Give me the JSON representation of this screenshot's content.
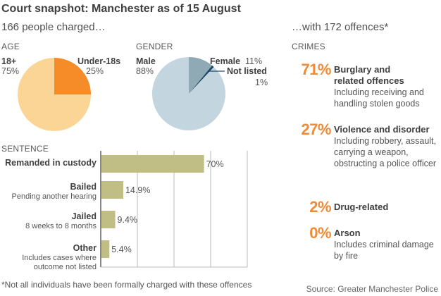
{
  "title": "Court snapshot: Manchester as of 15 August",
  "left_subtitle": "166 people charged…",
  "right_subtitle": "…with 172 offences*",
  "colors": {
    "accent_orange": "#F08A35",
    "age_adult": "#FBD596",
    "age_under18": "#F68C28",
    "gender_male": "#C3D5DE",
    "gender_female": "#8FAAB5",
    "gender_not_listed": "#1E4A68",
    "bar": "#C0BE84",
    "grid": "#bbbbbb"
  },
  "chart_data": [
    {
      "type": "pie",
      "title": "AGE",
      "slices": [
        {
          "label": "Under-18s",
          "value": 25,
          "value_label": "25%"
        },
        {
          "label": "18+",
          "value": 75,
          "value_label": "75%"
        }
      ]
    },
    {
      "type": "pie",
      "title": "GENDER",
      "slices": [
        {
          "label": "Female",
          "value": 11,
          "value_label": "11%"
        },
        {
          "label": "Not listed",
          "value": 1,
          "value_label": "1%"
        },
        {
          "label": "Male",
          "value": 88,
          "value_label": "88%"
        }
      ]
    },
    {
      "type": "bar",
      "orientation": "horizontal",
      "title": "SENTENCE",
      "xlim": [
        0,
        100
      ],
      "grid": true,
      "grid_values": [
        25,
        50,
        75
      ],
      "categories": [
        {
          "label": "Remanded in custody",
          "sublabel": "",
          "value": 70,
          "value_label": "70%"
        },
        {
          "label": "Bailed",
          "sublabel": "Pending another hearing",
          "value": 14.9,
          "value_label": "14.9%"
        },
        {
          "label": "Jailed",
          "sublabel": "8 weeks to 8 months",
          "value": 9.4,
          "value_label": "9.4%"
        },
        {
          "label": "Other",
          "sublabel": "Includes cases where|outcome not listed",
          "value": 5.4,
          "value_label": "5.4%"
        }
      ]
    },
    {
      "type": "table",
      "title": "CRIMES",
      "rows": [
        {
          "pct": "71%",
          "value": 71,
          "name": "Burglary and related offences",
          "name_lines": [
            "Burglary and",
            "related offences"
          ],
          "desc_lines": [
            "Including receiving and",
            "handling stolen goods"
          ]
        },
        {
          "pct": "27%",
          "value": 27,
          "name": "Violence and disorder",
          "name_lines": [
            "Violence and disorder"
          ],
          "desc_lines": [
            "Including robbery, assault,",
            "carrying a weapon,",
            "obstructing a police officer"
          ]
        },
        {
          "pct": "2%",
          "value": 2,
          "name": "Drug-related",
          "name_lines": [
            "Drug-related"
          ],
          "desc_lines": []
        },
        {
          "pct": "0%",
          "value": 0,
          "name": "Arson",
          "name_lines": [
            "Arson"
          ],
          "desc_lines": [
            "Includes criminal damage",
            "by fire"
          ]
        }
      ]
    }
  ],
  "footnote": "*Not all individuals have been formally charged with these offences",
  "source": "Source: Greater Manchester Police"
}
